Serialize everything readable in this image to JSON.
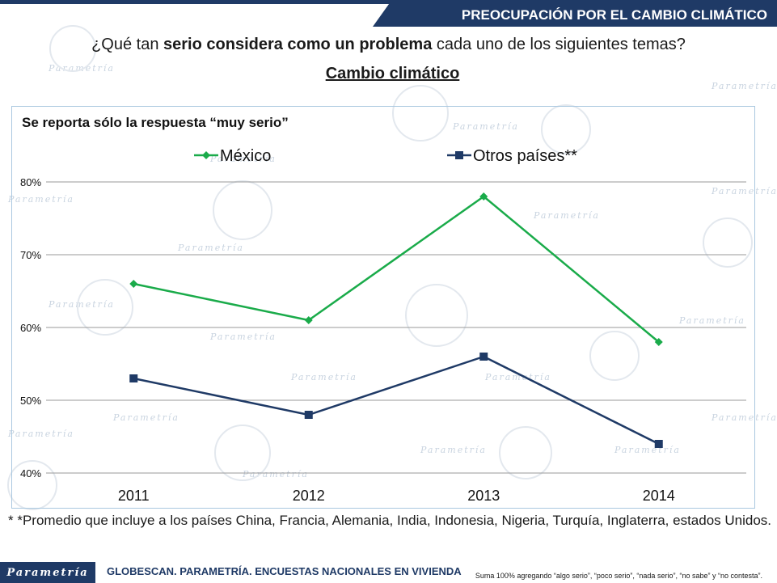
{
  "header": {
    "banner_title": "PREOCUPACIÓN POR EL CAMBIO CLIMÁTICO",
    "question_pre": "¿Qué tan ",
    "question_bold": "serio considera como un problema",
    "question_post": " cada uno de los siguientes temas?",
    "subtitle": "Cambio climático"
  },
  "chart_data": {
    "type": "line",
    "title": "Se reporta sólo la respuesta “muy serio”",
    "categories": [
      "2011",
      "2012",
      "2013",
      "2014"
    ],
    "series": [
      {
        "name": "México",
        "values": [
          66,
          61,
          78,
          58
        ],
        "color": "#1aab4a",
        "marker": "diamond"
      },
      {
        "name": "Otros países**",
        "values": [
          53,
          48,
          56,
          44
        ],
        "color": "#1f3a66",
        "marker": "square"
      }
    ],
    "ylim": [
      40,
      80
    ],
    "yticks": [
      "40%",
      "50%",
      "60%",
      "70%",
      "80%"
    ],
    "ytick_values": [
      40,
      50,
      60,
      70,
      80
    ],
    "grid": true,
    "legend_position": "top"
  },
  "footer": {
    "footnote": "* *Promedio que incluye a los países China, Francia, Alemania, India, Indonesia, Nigeria, Turquía, Inglaterra, estados Unidos.",
    "logo": "Parametría",
    "source": "GLOBESCAN. PARAMETRÍA. ENCUESTAS NACIONALES EN VIVIENDA",
    "note": "Suma 100% agregando “algo serio”, “poco serio”, “nada serio”, “no sabe” y “no contesta”."
  },
  "watermark": {
    "text": "Parametría"
  },
  "colors": {
    "brand_navy": "#1f3a66",
    "mexico_green": "#1aab4a",
    "grid": "#9a9a9a"
  }
}
